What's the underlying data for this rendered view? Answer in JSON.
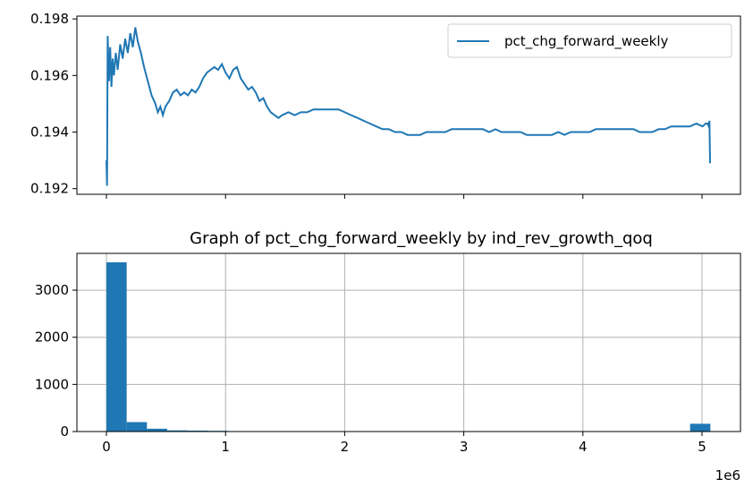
{
  "chart_data": [
    {
      "type": "line",
      "title": "",
      "xlabel": "",
      "ylabel": "",
      "ylim": [
        0.1918,
        0.1981
      ],
      "yticks": [
        "0.192",
        "0.194",
        "0.196",
        "0.198"
      ],
      "ytick_values": [
        0.192,
        0.194,
        0.196,
        0.198
      ],
      "xticks_labeled": false,
      "grid": false,
      "legend": "top-right",
      "series": [
        {
          "name": "pct_chg_forward_weekly",
          "color": "#1f77b4",
          "points": [
            [
              0.0,
              0.193
            ],
            [
              0.001,
              0.1921
            ],
            [
              0.002,
              0.1974
            ],
            [
              0.004,
              0.1958
            ],
            [
              0.006,
              0.197
            ],
            [
              0.008,
              0.1956
            ],
            [
              0.01,
              0.1966
            ],
            [
              0.012,
              0.196
            ],
            [
              0.015,
              0.1968
            ],
            [
              0.018,
              0.1962
            ],
            [
              0.022,
              0.1971
            ],
            [
              0.026,
              0.1966
            ],
            [
              0.03,
              0.1973
            ],
            [
              0.034,
              0.1968
            ],
            [
              0.038,
              0.1975
            ],
            [
              0.042,
              0.197
            ],
            [
              0.046,
              0.1977
            ],
            [
              0.05,
              0.1972
            ],
            [
              0.055,
              0.1968
            ],
            [
              0.06,
              0.1963
            ],
            [
              0.066,
              0.1958
            ],
            [
              0.072,
              0.1953
            ],
            [
              0.078,
              0.195
            ],
            [
              0.082,
              0.1947
            ],
            [
              0.086,
              0.1949
            ],
            [
              0.09,
              0.1946
            ],
            [
              0.094,
              0.1949
            ],
            [
              0.1,
              0.1951
            ],
            [
              0.106,
              0.1954
            ],
            [
              0.112,
              0.1955
            ],
            [
              0.118,
              0.1953
            ],
            [
              0.124,
              0.1954
            ],
            [
              0.13,
              0.1953
            ],
            [
              0.136,
              0.1955
            ],
            [
              0.142,
              0.1954
            ],
            [
              0.148,
              0.1956
            ],
            [
              0.154,
              0.1959
            ],
            [
              0.16,
              0.1961
            ],
            [
              0.166,
              0.1962
            ],
            [
              0.172,
              0.1963
            ],
            [
              0.178,
              0.1962
            ],
            [
              0.184,
              0.1964
            ],
            [
              0.19,
              0.1961
            ],
            [
              0.196,
              0.1959
            ],
            [
              0.202,
              0.1962
            ],
            [
              0.208,
              0.1963
            ],
            [
              0.214,
              0.1959
            ],
            [
              0.22,
              0.1957
            ],
            [
              0.226,
              0.1955
            ],
            [
              0.232,
              0.1956
            ],
            [
              0.238,
              0.1954
            ],
            [
              0.244,
              0.1951
            ],
            [
              0.25,
              0.1952
            ],
            [
              0.256,
              0.1949
            ],
            [
              0.262,
              0.1947
            ],
            [
              0.268,
              0.1946
            ],
            [
              0.274,
              0.1945
            ],
            [
              0.28,
              0.1946
            ],
            [
              0.29,
              0.1947
            ],
            [
              0.3,
              0.1946
            ],
            [
              0.31,
              0.1947
            ],
            [
              0.32,
              0.1947
            ],
            [
              0.33,
              0.1948
            ],
            [
              0.34,
              0.1948
            ],
            [
              0.35,
              0.1948
            ],
            [
              0.36,
              0.1948
            ],
            [
              0.37,
              0.1948
            ],
            [
              0.38,
              0.1947
            ],
            [
              0.39,
              0.1946
            ],
            [
              0.4,
              0.1945
            ],
            [
              0.41,
              0.1944
            ],
            [
              0.42,
              0.1943
            ],
            [
              0.43,
              0.1942
            ],
            [
              0.44,
              0.1941
            ],
            [
              0.45,
              0.1941
            ],
            [
              0.46,
              0.194
            ],
            [
              0.47,
              0.194
            ],
            [
              0.48,
              0.1939
            ],
            [
              0.49,
              0.1939
            ],
            [
              0.5,
              0.1939
            ],
            [
              0.51,
              0.194
            ],
            [
              0.52,
              0.194
            ],
            [
              0.53,
              0.194
            ],
            [
              0.54,
              0.194
            ],
            [
              0.55,
              0.1941
            ],
            [
              0.56,
              0.1941
            ],
            [
              0.57,
              0.1941
            ],
            [
              0.58,
              0.1941
            ],
            [
              0.59,
              0.1941
            ],
            [
              0.6,
              0.1941
            ],
            [
              0.61,
              0.194
            ],
            [
              0.62,
              0.1941
            ],
            [
              0.63,
              0.194
            ],
            [
              0.64,
              0.194
            ],
            [
              0.65,
              0.194
            ],
            [
              0.66,
              0.194
            ],
            [
              0.67,
              0.1939
            ],
            [
              0.68,
              0.1939
            ],
            [
              0.69,
              0.1939
            ],
            [
              0.7,
              0.1939
            ],
            [
              0.71,
              0.1939
            ],
            [
              0.72,
              0.194
            ],
            [
              0.73,
              0.1939
            ],
            [
              0.74,
              0.194
            ],
            [
              0.75,
              0.194
            ],
            [
              0.76,
              0.194
            ],
            [
              0.77,
              0.194
            ],
            [
              0.78,
              0.1941
            ],
            [
              0.79,
              0.1941
            ],
            [
              0.8,
              0.1941
            ],
            [
              0.81,
              0.1941
            ],
            [
              0.82,
              0.1941
            ],
            [
              0.83,
              0.1941
            ],
            [
              0.84,
              0.1941
            ],
            [
              0.85,
              0.194
            ],
            [
              0.86,
              0.194
            ],
            [
              0.87,
              0.194
            ],
            [
              0.88,
              0.1941
            ],
            [
              0.89,
              0.1941
            ],
            [
              0.9,
              0.1942
            ],
            [
              0.91,
              0.1942
            ],
            [
              0.92,
              0.1942
            ],
            [
              0.93,
              0.1942
            ],
            [
              0.94,
              0.1943
            ],
            [
              0.95,
              0.1942
            ],
            [
              0.955,
              0.1943
            ],
            [
              0.958,
              0.1943
            ],
            [
              0.96,
              0.1942
            ],
            [
              0.961,
              0.1944
            ],
            [
              0.962,
              0.1929
            ]
          ]
        }
      ]
    },
    {
      "type": "bar",
      "title": "Graph of pct_chg_forward_weekly by ind_rev_growth_qoq",
      "xlabel": "",
      "ylabel": "",
      "x_offset_label": "1e6",
      "xlim": [
        -0.2,
        5.25
      ],
      "ylim": [
        0,
        3780
      ],
      "xticks": [
        "0",
        "1",
        "2",
        "3",
        "4",
        "5"
      ],
      "xtick_values": [
        0,
        1,
        2,
        3,
        4,
        5
      ],
      "yticks": [
        "0",
        "1000",
        "2000",
        "3000"
      ],
      "ytick_values": [
        0,
        1000,
        2000,
        3000
      ],
      "grid": true,
      "bar_color": "#1f77b4",
      "bins": [
        {
          "x0": 0.0,
          "x1": 0.17,
          "value": 3590
        },
        {
          "x0": 0.17,
          "x1": 0.34,
          "value": 200
        },
        {
          "x0": 0.34,
          "x1": 0.51,
          "value": 60
        },
        {
          "x0": 0.51,
          "x1": 0.68,
          "value": 25
        },
        {
          "x0": 0.68,
          "x1": 0.85,
          "value": 20
        },
        {
          "x0": 0.85,
          "x1": 1.02,
          "value": 15
        },
        {
          "x0": 1.02,
          "x1": 1.19,
          "value": 10
        },
        {
          "x0": 1.19,
          "x1": 1.36,
          "value": 8
        },
        {
          "x0": 4.9,
          "x1": 5.07,
          "value": 165
        }
      ]
    }
  ]
}
